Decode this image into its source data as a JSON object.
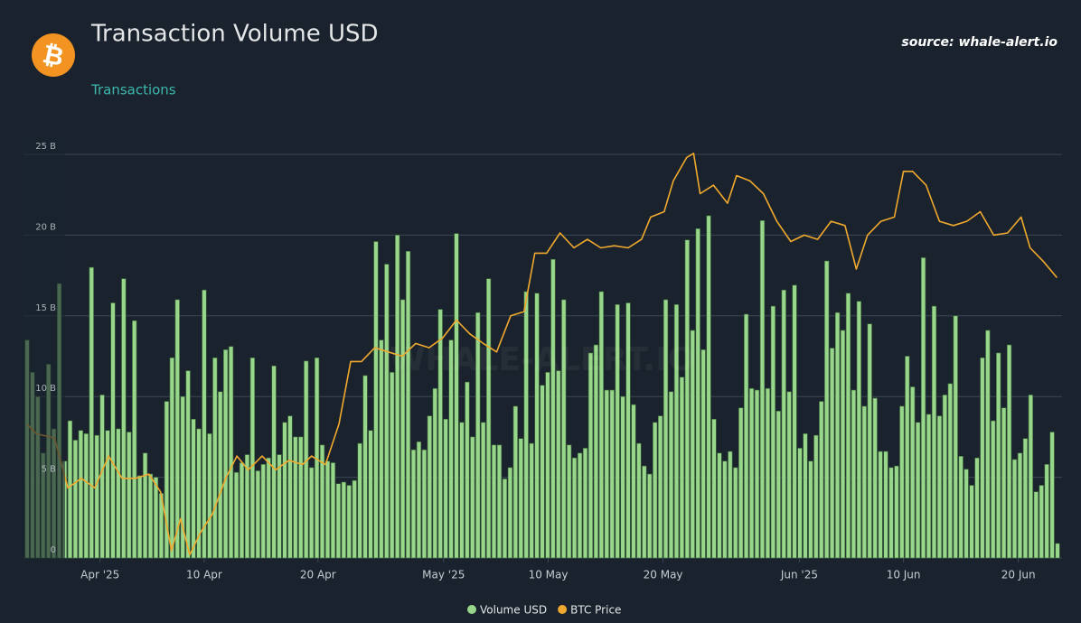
{
  "chart_data": {
    "type": "bar",
    "title": "Transaction Volume USD",
    "subtitle": "Transactions",
    "source": "source: whale-alert.io",
    "logo_text": "₿",
    "watermark": "WHALE-ALERT.IO",
    "ylim": [
      0,
      25
    ],
    "yticks": [
      0,
      {
        "value": 5,
        "label": "5 B"
      },
      {
        "value": 10,
        "label": "10 B"
      },
      {
        "value": 15,
        "label": "15 B"
      },
      {
        "value": 20,
        "label": "20 B"
      },
      {
        "value": 25,
        "label": "25 B"
      }
    ],
    "y2lim": [
      74000,
      112000
    ],
    "xlim": [
      -0.5,
      192.5
    ],
    "xticks": [
      {
        "value": 13.6,
        "label": "Apr '25"
      },
      {
        "value": 33,
        "label": "10 Apr"
      },
      {
        "value": 54.2,
        "label": "20 Apr"
      },
      {
        "value": 77.6,
        "label": "May '25"
      },
      {
        "value": 97.1,
        "label": "10 May"
      },
      {
        "value": 118.5,
        "label": "20 May"
      },
      {
        "value": 143.9,
        "label": "Jun '25"
      },
      {
        "value": 163.3,
        "label": "10 Jun"
      },
      {
        "value": 184.7,
        "label": "20 Jun"
      }
    ],
    "grid": true,
    "legend": "bottom",
    "series": [
      {
        "name": "Volume USD",
        "color": "#98d68c",
        "values": [
          13.5,
          11.5,
          10,
          6.5,
          12,
          8,
          17,
          6,
          8.5,
          7.3,
          7.9,
          7.7,
          18,
          7.6,
          10.1,
          7.9,
          15.8,
          8,
          17.3,
          7.8,
          14.7,
          5.1,
          6.5,
          5.2,
          5,
          4,
          9.7,
          12.4,
          16,
          10,
          11.6,
          8.6,
          8,
          16.6,
          7.7,
          12.4,
          10.3,
          12.9,
          13.1,
          5.3,
          5.9,
          6.4,
          12.4,
          5.4,
          5.8,
          6.2,
          11.9,
          6.4,
          8.4,
          8.8,
          7.5,
          7.5,
          12.2,
          5.6,
          12.4,
          7,
          6,
          5.9,
          4.6,
          4.7,
          4.5,
          4.8,
          7.1,
          11.3,
          7.9,
          19.6,
          13.5,
          18.2,
          11.5,
          20,
          16,
          19,
          6.7,
          7.2,
          6.7,
          8.8,
          10.5,
          15.4,
          8.6,
          13.5,
          20.1,
          8.4,
          10.9,
          7.5,
          15.2,
          8.4,
          17.3,
          7,
          7,
          4.9,
          5.6,
          9.4,
          7.4,
          16.5,
          7.1,
          16.4,
          10.7,
          11.5,
          18.5,
          11.6,
          16,
          7,
          6.2,
          6.5,
          6.8,
          12.7,
          13.2,
          16.5,
          10.4,
          10.4,
          15.7,
          10,
          15.8,
          9.5,
          7.1,
          5.7,
          5.2,
          8.4,
          8.8,
          16,
          10.3,
          15.7,
          11.2,
          19.7,
          14.1,
          20.4,
          12.9,
          21.2,
          8.6,
          6.5,
          6,
          6.6,
          5.6,
          9.3,
          15.1,
          10.5,
          10.4,
          20.9,
          10.5,
          15.6,
          9.1,
          16.6,
          10.3,
          16.9,
          6.8,
          7.7,
          6,
          7.6,
          9.7,
          18.4,
          13,
          15.2,
          14.1,
          16.4,
          10.4,
          15.9,
          9.4,
          14.5,
          9.9,
          6.6,
          6.6,
          5.6,
          5.7,
          9.4,
          12.5,
          10.6,
          8.4,
          18.6,
          8.9,
          15.6,
          8.8,
          10.1,
          10.8,
          15,
          6.3,
          5.5,
          4.5,
          6.2,
          12.4,
          14.1,
          8.5,
          12.7,
          9.3,
          13.2,
          6.1,
          6.5,
          7.4,
          10.1,
          4.1,
          4.5,
          5.8,
          7.8,
          0.9
        ]
      },
      {
        "name": "BTC Price",
        "color": "#f0a92e",
        "axis": "y2",
        "x": [
          0,
          1.7,
          5.1,
          7.6,
          10.1,
          12.6,
          15.2,
          17.7,
          20.2,
          22.7,
          24.9,
          26.9,
          28.6,
          30.3,
          32.3,
          34.5,
          37,
          39.1,
          41.2,
          43.8,
          46.3,
          48.8,
          51.3,
          53,
          55.6,
          58.1,
          60.3,
          62.3,
          64.8,
          67.3,
          69.9,
          72.4,
          74.9,
          77.4,
          80,
          82.5,
          85,
          87.5,
          90.1,
          92.6,
          94.6,
          96.8,
          99.3,
          101.9,
          104.4,
          106.9,
          109.4,
          112,
          114.5,
          116.2,
          118.7,
          120.4,
          122.9,
          124.2,
          125.4,
          127.9,
          130.5,
          132.2,
          134.7,
          137.2,
          139.7,
          142.3,
          144.8,
          147.3,
          149.8,
          152.4,
          154.5,
          156.6,
          159.1,
          161.6,
          163.3,
          165,
          167.5,
          170,
          172.6,
          175.1,
          177.6,
          180.1,
          182.7,
          185.2,
          186.9,
          189.4,
          191.9
        ],
        "values": [
          86600,
          85700,
          85300,
          80600,
          81500,
          80600,
          83600,
          81500,
          81500,
          81900,
          80200,
          74700,
          77700,
          74300,
          76400,
          78100,
          81500,
          83600,
          82300,
          83600,
          82300,
          83200,
          82800,
          83600,
          82800,
          86600,
          92500,
          92500,
          93800,
          93400,
          93000,
          94200,
          93800,
          94700,
          96400,
          95100,
          94200,
          93400,
          96800,
          97200,
          102700,
          102700,
          104600,
          103200,
          104000,
          103200,
          103400,
          103200,
          104000,
          106100,
          106600,
          109500,
          111700,
          112100,
          108300,
          109100,
          107400,
          110000,
          109500,
          108300,
          105700,
          103800,
          104400,
          104000,
          105700,
          105300,
          101200,
          104400,
          105700,
          106100,
          110400,
          110400,
          109100,
          105700,
          105300,
          105700,
          106600,
          104400,
          104600,
          106100,
          103200,
          101900,
          100400
        ]
      }
    ]
  }
}
